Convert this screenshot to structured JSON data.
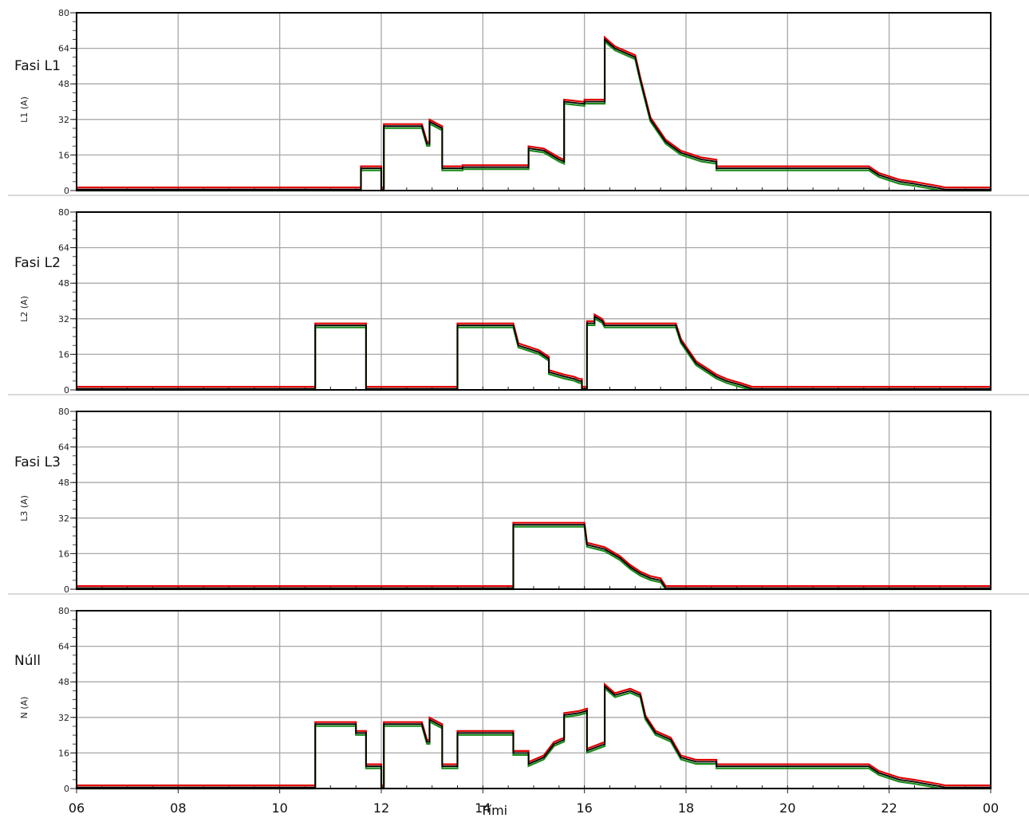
{
  "chart_data": {
    "type": "line",
    "xlabel": "Tími",
    "x_ticks": [
      "06",
      "08",
      "10",
      "12",
      "14",
      "16",
      "18",
      "20",
      "22",
      "00"
    ],
    "xlim": [
      6,
      24
    ],
    "y_ticks": [
      0,
      16,
      32,
      48,
      64,
      80
    ],
    "ylim": [
      0,
      80
    ],
    "grid": true,
    "series_colors": [
      "#e00000",
      "#1a8a1a",
      "#000000"
    ],
    "panels": [
      {
        "title": "Fasi L1",
        "ylabel": "L1 (A)",
        "data": [
          [
            6.0,
            0.5
          ],
          [
            11.6,
            0.5
          ],
          [
            11.6,
            10
          ],
          [
            12.0,
            10
          ],
          [
            12.0,
            0.5
          ],
          [
            12.05,
            0.5
          ],
          [
            12.05,
            29
          ],
          [
            12.8,
            29
          ],
          [
            12.9,
            21
          ],
          [
            12.95,
            21
          ],
          [
            12.95,
            31
          ],
          [
            13.2,
            28
          ],
          [
            13.2,
            10
          ],
          [
            13.6,
            10
          ],
          [
            13.6,
            10.5
          ],
          [
            14.9,
            10.5
          ],
          [
            14.9,
            19
          ],
          [
            15.2,
            18
          ],
          [
            15.5,
            14
          ],
          [
            15.6,
            13
          ],
          [
            15.6,
            40
          ],
          [
            16.0,
            39
          ],
          [
            16.0,
            40
          ],
          [
            16.4,
            40
          ],
          [
            16.4,
            68
          ],
          [
            16.6,
            64
          ],
          [
            17.0,
            60
          ],
          [
            17.1,
            50
          ],
          [
            17.3,
            32
          ],
          [
            17.6,
            22
          ],
          [
            17.9,
            17
          ],
          [
            18.3,
            14
          ],
          [
            18.6,
            13
          ],
          [
            18.6,
            10
          ],
          [
            20.5,
            10
          ],
          [
            21.6,
            10
          ],
          [
            21.8,
            7
          ],
          [
            22.2,
            4
          ],
          [
            22.5,
            3
          ],
          [
            23.0,
            1
          ],
          [
            23.1,
            0.5
          ],
          [
            24.0,
            0.5
          ]
        ]
      },
      {
        "title": "Fasi L2",
        "ylabel": "L2 (A)",
        "data": [
          [
            6.0,
            0.5
          ],
          [
            10.7,
            0.5
          ],
          [
            10.7,
            29
          ],
          [
            11.7,
            29
          ],
          [
            11.7,
            0.5
          ],
          [
            13.5,
            0.5
          ],
          [
            13.5,
            29
          ],
          [
            14.6,
            29
          ],
          [
            14.7,
            20
          ],
          [
            15.1,
            17
          ],
          [
            15.3,
            14
          ],
          [
            15.3,
            8
          ],
          [
            15.6,
            6
          ],
          [
            15.8,
            5
          ],
          [
            15.9,
            4
          ],
          [
            15.95,
            4
          ],
          [
            15.95,
            0.5
          ],
          [
            16.05,
            0.5
          ],
          [
            16.05,
            30
          ],
          [
            16.2,
            30
          ],
          [
            16.2,
            33
          ],
          [
            16.35,
            31
          ],
          [
            16.4,
            29
          ],
          [
            17.8,
            29
          ],
          [
            17.9,
            22
          ],
          [
            18.2,
            12
          ],
          [
            18.6,
            6
          ],
          [
            18.8,
            4
          ],
          [
            19.1,
            2
          ],
          [
            19.3,
            0.5
          ],
          [
            24.0,
            0.5
          ]
        ]
      },
      {
        "title": "Fasi L3",
        "ylabel": "L3 (A)",
        "data": [
          [
            6.0,
            0.5
          ],
          [
            14.6,
            0.5
          ],
          [
            14.6,
            29
          ],
          [
            16.0,
            29
          ],
          [
            16.05,
            20
          ],
          [
            16.4,
            18
          ],
          [
            16.7,
            14
          ],
          [
            16.9,
            10
          ],
          [
            17.1,
            7
          ],
          [
            17.3,
            5
          ],
          [
            17.5,
            4
          ],
          [
            17.6,
            0.5
          ],
          [
            24.0,
            0.5
          ]
        ]
      },
      {
        "title": "Núll",
        "ylabel": "N (A)",
        "data": [
          [
            6.0,
            0.5
          ],
          [
            10.7,
            0.5
          ],
          [
            10.7,
            29
          ],
          [
            11.5,
            29
          ],
          [
            11.5,
            25
          ],
          [
            11.7,
            25
          ],
          [
            11.7,
            10
          ],
          [
            12.0,
            10
          ],
          [
            12.0,
            0.5
          ],
          [
            12.05,
            0.5
          ],
          [
            12.05,
            29
          ],
          [
            12.8,
            29
          ],
          [
            12.9,
            21
          ],
          [
            12.95,
            21
          ],
          [
            12.95,
            31
          ],
          [
            13.2,
            28
          ],
          [
            13.2,
            10
          ],
          [
            13.5,
            10
          ],
          [
            13.5,
            25
          ],
          [
            14.6,
            25
          ],
          [
            14.6,
            16
          ],
          [
            14.9,
            16
          ],
          [
            14.9,
            11
          ],
          [
            15.2,
            14
          ],
          [
            15.4,
            20
          ],
          [
            15.6,
            22
          ],
          [
            15.6,
            33
          ],
          [
            15.9,
            34
          ],
          [
            16.05,
            35
          ],
          [
            16.05,
            17
          ],
          [
            16.4,
            20
          ],
          [
            16.4,
            46
          ],
          [
            16.6,
            42
          ],
          [
            16.9,
            44
          ],
          [
            17.1,
            42
          ],
          [
            17.2,
            32
          ],
          [
            17.4,
            25
          ],
          [
            17.7,
            22
          ],
          [
            17.9,
            14
          ],
          [
            18.2,
            12
          ],
          [
            18.6,
            12
          ],
          [
            18.6,
            10
          ],
          [
            19.2,
            10
          ],
          [
            21.6,
            10
          ],
          [
            21.8,
            7
          ],
          [
            22.2,
            4
          ],
          [
            22.5,
            3
          ],
          [
            23.0,
            1
          ],
          [
            23.1,
            0.5
          ],
          [
            24.0,
            0.5
          ]
        ]
      }
    ]
  }
}
